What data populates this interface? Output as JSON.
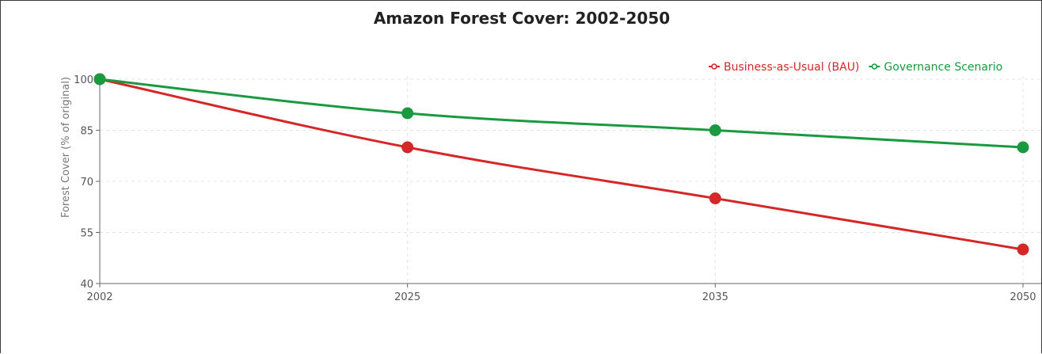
{
  "chart_data": {
    "type": "line",
    "title": "Amazon Forest Cover: 2002-2050",
    "xlabel": "",
    "ylabel": "Forest Cover (% of original)",
    "x": [
      2002,
      2025,
      2035,
      2050
    ],
    "x_ticks": [
      "2002",
      "2025",
      "2035",
      "2050"
    ],
    "y_ticks": [
      "40",
      "55",
      "70",
      "85",
      "100"
    ],
    "ylim": [
      40,
      100
    ],
    "grid": true,
    "legend_position": "top-right",
    "series": [
      {
        "name": "Business-as-Usual (BAU)",
        "color": "#d62728",
        "values": [
          100,
          80,
          65,
          50
        ]
      },
      {
        "name": "Governance Scenario",
        "color": "#1a9a40",
        "values": [
          100,
          90,
          85,
          80
        ]
      }
    ]
  }
}
